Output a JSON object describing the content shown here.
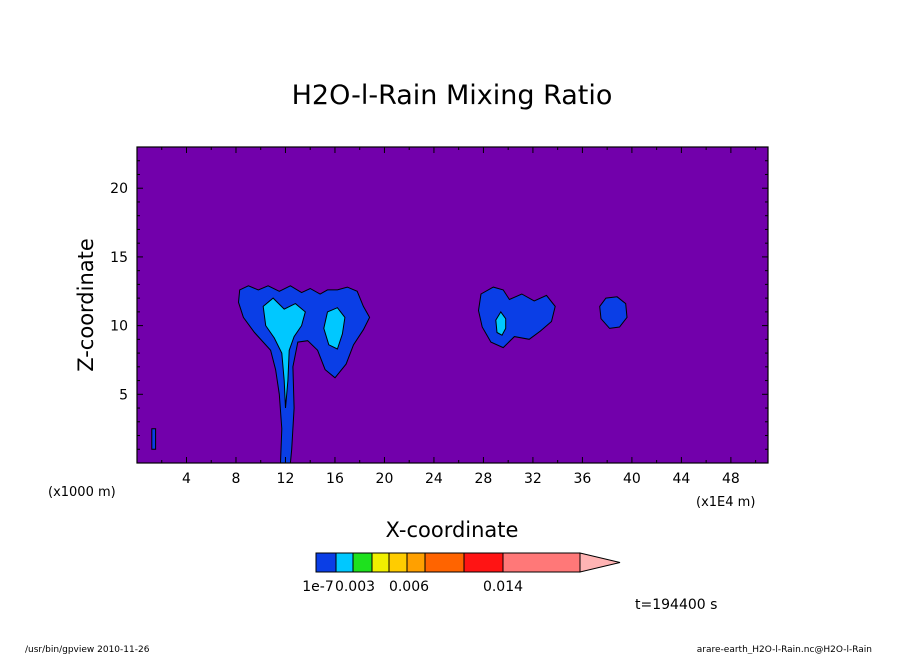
{
  "chart_data": {
    "type": "contour",
    "title": "H2O-l-Rain Mixing Ratio",
    "xlabel": "X-coordinate",
    "ylabel": "Z-coordinate",
    "x_unit": "(x1E4 m)",
    "y_unit": "(x1000 m)",
    "xlim": [
      0,
      51
    ],
    "ylim": [
      0,
      23
    ],
    "x_ticks": [
      "4",
      "8",
      "12",
      "16",
      "20",
      "24",
      "28",
      "32",
      "36",
      "40",
      "44",
      "48"
    ],
    "y_ticks": [
      "5",
      "10",
      "15",
      "20"
    ],
    "background_color": "#7200ab",
    "levels": [
      {
        "lo": "1e-7",
        "color": "#0a3ee6"
      },
      {
        "lo": "0.0015",
        "color": "#00c8ff"
      },
      {
        "lo": "0.003",
        "color": "#1ee11e"
      },
      {
        "lo": "0.004",
        "color": "#f0f000"
      },
      {
        "lo": "0.005",
        "color": "#ffcc00"
      },
      {
        "lo": "0.006",
        "color": "#ffa000"
      },
      {
        "lo": "0.008",
        "color": "#ff6400"
      },
      {
        "lo": "0.010",
        "color": "#ff1414"
      },
      {
        "lo": "0.014",
        "color": "#ff7878"
      }
    ],
    "colorbar_labels": [
      "1e-7",
      "0.003",
      "0.006",
      "0.014"
    ],
    "over_color": "#ffb4b4",
    "regions": [
      {
        "level": 0,
        "points": [
          [
            8.3,
            12.6
          ],
          [
            9.0,
            12.9
          ],
          [
            9.8,
            12.6
          ],
          [
            10.6,
            12.9
          ],
          [
            11.5,
            12.5
          ],
          [
            12.4,
            12.9
          ],
          [
            13.3,
            12.4
          ],
          [
            14.0,
            12.7
          ],
          [
            14.8,
            12.3
          ],
          [
            15.4,
            12.6
          ],
          [
            16.2,
            12.6
          ],
          [
            17.0,
            12.8
          ],
          [
            17.8,
            12.5
          ],
          [
            18.3,
            11.4
          ],
          [
            18.8,
            10.6
          ],
          [
            18.3,
            9.7
          ],
          [
            17.5,
            8.6
          ],
          [
            16.9,
            7.2
          ],
          [
            16.0,
            6.2
          ],
          [
            15.2,
            6.8
          ],
          [
            14.6,
            8.2
          ],
          [
            13.8,
            8.9
          ],
          [
            13.0,
            8.8
          ],
          [
            12.6,
            7.0
          ],
          [
            12.7,
            4.0
          ],
          [
            12.5,
            1.0
          ],
          [
            12.4,
            0.0
          ],
          [
            11.6,
            0.0
          ],
          [
            11.7,
            2.5
          ],
          [
            11.5,
            5.0
          ],
          [
            11.2,
            6.8
          ],
          [
            10.8,
            8.2
          ],
          [
            9.5,
            9.5
          ],
          [
            8.6,
            10.6
          ],
          [
            8.2,
            11.7
          ]
        ]
      },
      {
        "level": 0,
        "points": [
          [
            27.8,
            12.3
          ],
          [
            28.8,
            12.8
          ],
          [
            29.6,
            12.6
          ],
          [
            30.1,
            11.9
          ],
          [
            31.1,
            12.3
          ],
          [
            32.1,
            11.8
          ],
          [
            33.1,
            12.2
          ],
          [
            33.8,
            11.4
          ],
          [
            33.5,
            10.3
          ],
          [
            32.6,
            9.6
          ],
          [
            31.7,
            9.0
          ],
          [
            30.5,
            9.2
          ],
          [
            29.6,
            8.4
          ],
          [
            28.6,
            8.8
          ],
          [
            27.9,
            9.9
          ],
          [
            27.6,
            11.1
          ]
        ]
      },
      {
        "level": 0,
        "points": [
          [
            37.4,
            11.4
          ],
          [
            37.9,
            12.0
          ],
          [
            38.8,
            12.1
          ],
          [
            39.5,
            11.6
          ],
          [
            39.6,
            10.6
          ],
          [
            39.0,
            9.9
          ],
          [
            38.2,
            9.8
          ],
          [
            37.5,
            10.5
          ]
        ]
      },
      {
        "level": 0,
        "points": [
          [
            1.2,
            2.5
          ],
          [
            1.5,
            2.5
          ],
          [
            1.5,
            1.0
          ],
          [
            1.2,
            1.0
          ]
        ]
      },
      {
        "level": 1,
        "points": [
          [
            10.2,
            11.4
          ],
          [
            11.0,
            12.0
          ],
          [
            11.9,
            11.2
          ],
          [
            12.8,
            11.6
          ],
          [
            13.6,
            11.0
          ],
          [
            13.3,
            10.0
          ],
          [
            12.7,
            9.2
          ],
          [
            12.3,
            8.2
          ],
          [
            12.2,
            6.0
          ],
          [
            12.0,
            4.0
          ],
          [
            11.9,
            6.0
          ],
          [
            11.7,
            8.0
          ],
          [
            11.1,
            9.1
          ],
          [
            10.4,
            10.0
          ]
        ]
      },
      {
        "level": 1,
        "points": [
          [
            15.4,
            11.0
          ],
          [
            16.2,
            11.3
          ],
          [
            16.8,
            10.6
          ],
          [
            16.6,
            9.4
          ],
          [
            16.2,
            8.3
          ],
          [
            15.5,
            8.6
          ],
          [
            15.1,
            9.8
          ]
        ]
      },
      {
        "level": 1,
        "points": [
          [
            29.0,
            10.4
          ],
          [
            29.4,
            11.0
          ],
          [
            29.8,
            10.5
          ],
          [
            29.8,
            9.8
          ],
          [
            29.5,
            9.3
          ],
          [
            29.1,
            9.5
          ]
        ]
      }
    ],
    "annotation": "t=194400 s"
  },
  "footer": {
    "left": "/usr/bin/gpview   2010-11-26",
    "right": "arare-earth_H2O-l-Rain.nc@H2O-l-Rain"
  }
}
